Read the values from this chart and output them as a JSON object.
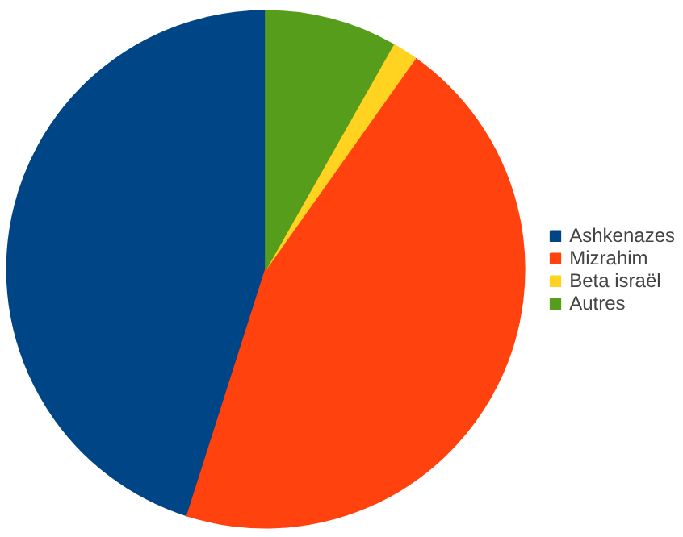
{
  "chart_data": {
    "type": "pie",
    "categories": [
      "Ashkenazes",
      "Mizrahim",
      "Beta israël",
      "Autres"
    ],
    "values": [
      45.1,
      45.1,
      1.6,
      8.2
    ],
    "colors": [
      "#004586",
      "#ff420e",
      "#ffd320",
      "#579d1c"
    ],
    "legend": "right"
  }
}
